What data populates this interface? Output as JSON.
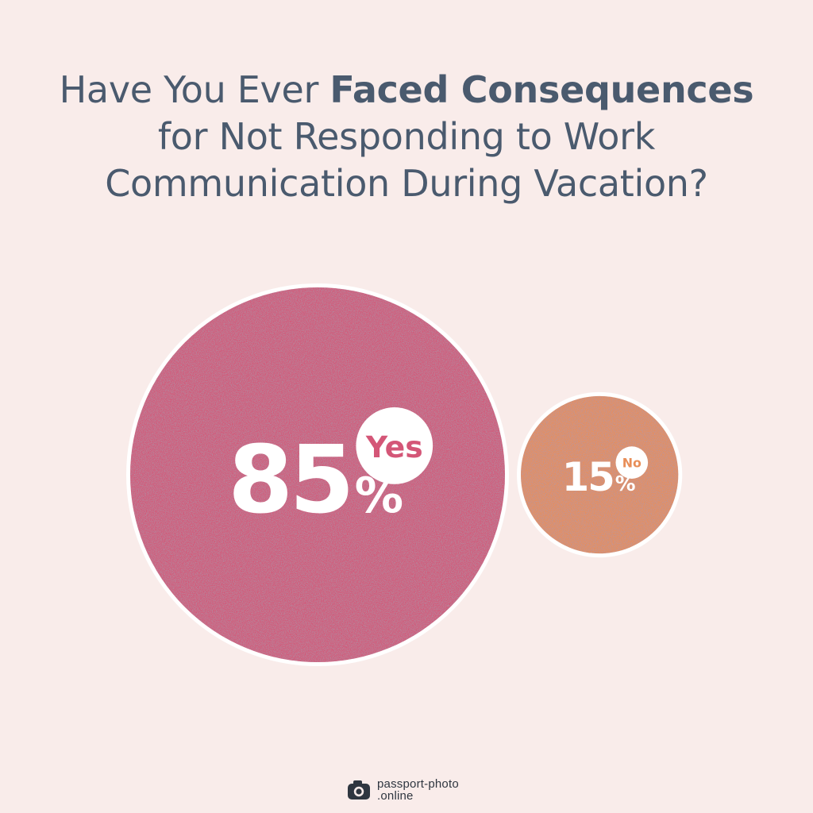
{
  "title": {
    "line1_prefix": "Have You Ever ",
    "line1_bold": "Faced Consequences",
    "line2": "for Not Responding to Work",
    "line3": "Communication During Vacation?"
  },
  "chart_data": {
    "type": "bubble",
    "title": "Have You Ever Faced Consequences for Not Responding to Work Communication During Vacation?",
    "unit": "%",
    "series": [
      {
        "label": "Yes",
        "value": 85,
        "color": "#d45677"
      },
      {
        "label": "No",
        "value": 15,
        "color": "#e88e58"
      }
    ]
  },
  "logo": {
    "line1": "passport-photo",
    "line2": ".online",
    "icon": "camera-icon"
  },
  "colors": {
    "background": "#f9ecea",
    "title_text": "#4a5a6e",
    "bubble_text": "#ffffff",
    "ring": "#ffffff"
  }
}
